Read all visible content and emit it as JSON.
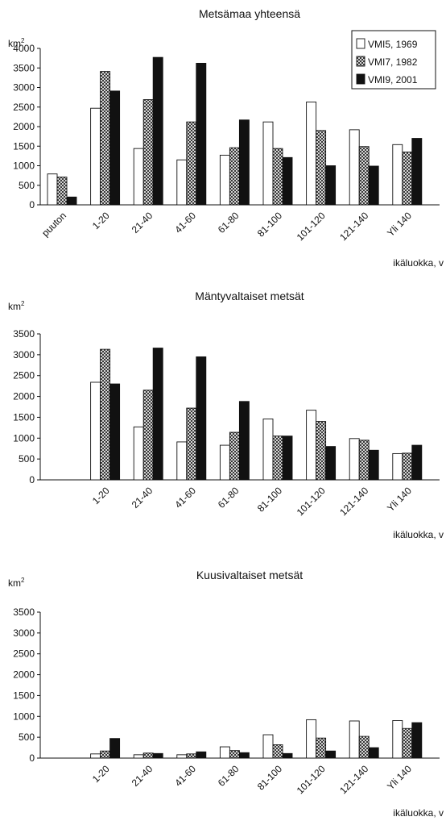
{
  "legend": {
    "items": [
      "VMI5, 1969",
      "VMI7, 1982",
      "VMI9, 2001"
    ],
    "styles": [
      "white",
      "crosshatch",
      "black"
    ],
    "placement": "top-right of first chart"
  },
  "chart_data": [
    {
      "type": "bar",
      "title": "Metsämaa yhteensä",
      "ylabel_base": "km",
      "ylabel_exp": "2",
      "xlabel": "ikäluokka, v",
      "categories": [
        "puuton",
        "1-20",
        "21-40",
        "41-60",
        "61-80",
        "81-100",
        "101-120",
        "121-140",
        "Yli 140"
      ],
      "ylim": [
        0,
        4000
      ],
      "yticks": [
        0,
        500,
        1000,
        1500,
        2000,
        2500,
        3000,
        3500,
        4000
      ],
      "grid": false,
      "series": [
        {
          "name": "VMI5, 1969",
          "values": [
            790,
            2470,
            1440,
            1150,
            1270,
            2120,
            2630,
            1920,
            1540
          ]
        },
        {
          "name": "VMI7, 1982",
          "values": [
            710,
            3410,
            2690,
            2120,
            1460,
            1440,
            1900,
            1490,
            1350
          ]
        },
        {
          "name": "VMI9, 2001",
          "values": [
            200,
            2910,
            3770,
            3620,
            2170,
            1210,
            1000,
            990,
            1700
          ]
        }
      ]
    },
    {
      "type": "bar",
      "title": "Mäntyvaltaiset metsät",
      "ylabel_base": "km",
      "ylabel_exp": "2",
      "xlabel": "ikäluokka, v",
      "categories": [
        "",
        "1-20",
        "21-40",
        "41-60",
        "61-80",
        "81-100",
        "101-120",
        "121-140",
        "Yli 140"
      ],
      "ylim": [
        0,
        3500
      ],
      "yticks": [
        0,
        500,
        1000,
        1500,
        2000,
        2500,
        3000,
        3500
      ],
      "grid": false,
      "series": [
        {
          "name": "VMI5, 1969",
          "values": [
            0,
            2340,
            1270,
            910,
            830,
            1460,
            1670,
            990,
            630
          ]
        },
        {
          "name": "VMI7, 1982",
          "values": [
            0,
            3130,
            2150,
            1720,
            1140,
            1050,
            1400,
            950,
            640
          ]
        },
        {
          "name": "VMI9, 2001",
          "values": [
            0,
            2300,
            3160,
            2950,
            1880,
            1050,
            800,
            710,
            830
          ]
        }
      ]
    },
    {
      "type": "bar",
      "title": "Kuusivaltaiset metsät",
      "ylabel_base": "km",
      "ylabel_exp": "2",
      "xlabel": "ikäluokka, v",
      "categories": [
        "",
        "1-20",
        "21-40",
        "41-60",
        "61-80",
        "81-100",
        "101-120",
        "121-140",
        "Yli 140"
      ],
      "ylim": [
        0,
        3500
      ],
      "yticks": [
        0,
        500,
        1000,
        1500,
        2000,
        2500,
        3000,
        3500
      ],
      "grid": false,
      "series": [
        {
          "name": "VMI5, 1969",
          "values": [
            0,
            100,
            80,
            80,
            270,
            560,
            920,
            890,
            900
          ]
        },
        {
          "name": "VMI7, 1982",
          "values": [
            0,
            170,
            120,
            100,
            180,
            320,
            480,
            520,
            710
          ]
        },
        {
          "name": "VMI9, 2001",
          "values": [
            0,
            470,
            110,
            150,
            130,
            110,
            170,
            250,
            850
          ]
        }
      ]
    }
  ]
}
